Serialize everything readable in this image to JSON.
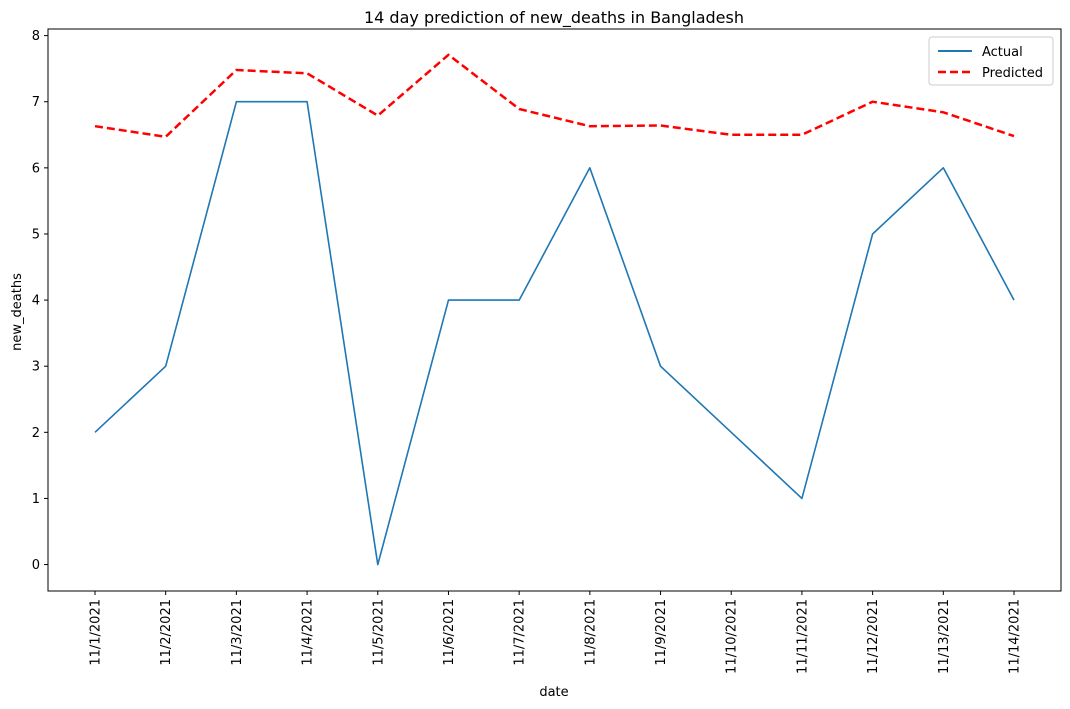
{
  "chart_data": {
    "type": "line",
    "title": "14 day prediction of new_deaths in Bangladesh",
    "xlabel": "date",
    "ylabel": "new_deaths",
    "categories": [
      "11/1/2021",
      "11/2/2021",
      "11/3/2021",
      "11/4/2021",
      "11/5/2021",
      "11/6/2021",
      "11/7/2021",
      "11/8/2021",
      "11/9/2021",
      "11/10/2021",
      "11/11/2021",
      "11/12/2021",
      "11/13/2021",
      "11/14/2021"
    ],
    "yticks": [
      0,
      1,
      2,
      3,
      4,
      5,
      6,
      7,
      8
    ],
    "ylim": [
      -0.4,
      8.1
    ],
    "grid": false,
    "legend_position": "top-right",
    "series": [
      {
        "name": "Actual",
        "color": "#1f77b4",
        "style": "solid",
        "values": [
          2,
          3,
          7,
          7,
          0,
          4,
          4,
          6,
          3,
          2,
          1,
          5,
          6,
          4
        ]
      },
      {
        "name": "Predicted",
        "color": "#ff0000",
        "style": "dashed",
        "values": [
          6.63,
          6.47,
          7.48,
          7.43,
          6.79,
          7.71,
          6.89,
          6.63,
          6.64,
          6.5,
          6.5,
          7.0,
          6.84,
          6.48
        ]
      }
    ]
  }
}
